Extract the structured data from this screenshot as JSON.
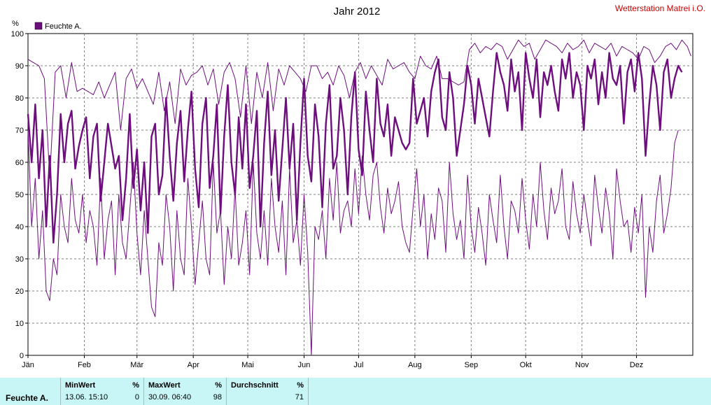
{
  "header": {
    "station": "Wetterstation Matrei i.O."
  },
  "chart_data": {
    "type": "line",
    "title": "Jahr 2012",
    "ylabel": "%",
    "ylim": [
      0,
      100
    ],
    "yticks": [
      0,
      10,
      20,
      30,
      40,
      50,
      60,
      70,
      80,
      90,
      100
    ],
    "months": [
      "Jän",
      "Feb",
      "Mär",
      "Apr",
      "Mai",
      "Jun",
      "Jul",
      "Aug",
      "Sep",
      "Okt",
      "Nov",
      "Dez"
    ],
    "month_start_day": [
      1,
      32,
      61,
      92,
      122,
      153,
      183,
      214,
      245,
      275,
      306,
      336
    ],
    "xlim_day": [
      1,
      367
    ],
    "grid": true,
    "legend": {
      "position": "top-left",
      "entries": [
        "Feuchte A."
      ]
    },
    "colors": {
      "series": "#6e0e7e",
      "title_station": "#cc0000"
    },
    "series": [
      {
        "name": "Feuchte A.",
        "role": "max",
        "day": [
          1,
          4,
          7,
          10,
          13,
          16,
          19,
          22,
          25,
          28,
          31,
          34,
          37,
          40,
          43,
          46,
          49,
          52,
          55,
          58,
          61,
          64,
          67,
          70,
          73,
          76,
          79,
          82,
          85,
          88,
          91,
          94,
          97,
          100,
          103,
          106,
          109,
          112,
          115,
          118,
          121,
          124,
          127,
          130,
          133,
          136,
          139,
          142,
          145,
          148,
          151,
          154,
          157,
          160,
          163,
          166,
          169,
          172,
          175,
          178,
          181,
          184,
          187,
          190,
          193,
          196,
          199,
          202,
          205,
          208,
          211,
          214,
          217,
          220,
          223,
          226,
          229,
          232,
          235,
          238,
          241,
          244,
          247,
          250,
          253,
          256,
          259,
          262,
          265,
          268,
          271,
          274,
          277,
          280,
          283,
          286,
          289,
          292,
          295,
          298,
          301,
          304,
          307,
          310,
          313,
          316,
          319,
          322,
          325,
          328,
          331,
          334,
          337,
          340,
          343,
          346,
          349,
          352,
          355,
          358,
          361,
          364,
          366
        ],
        "value": [
          92,
          91,
          90,
          86,
          55,
          88,
          90,
          80,
          91,
          82,
          83,
          82,
          81,
          85,
          80,
          84,
          88,
          70,
          86,
          89,
          83,
          86,
          82,
          78,
          88,
          76,
          85,
          72,
          89,
          84,
          87,
          88,
          90,
          84,
          89,
          78,
          88,
          91,
          86,
          74,
          90,
          72,
          88,
          80,
          91,
          76,
          89,
          84,
          90,
          88,
          86,
          82,
          90,
          90,
          86,
          88,
          84,
          90,
          87,
          80,
          88,
          91,
          86,
          90,
          87,
          84,
          92,
          89,
          90,
          91,
          88,
          86,
          93,
          90,
          89,
          93,
          86,
          86,
          85,
          84,
          85,
          95,
          97,
          94,
          96,
          95,
          97,
          96,
          92,
          95,
          98,
          96,
          97,
          92,
          95,
          98,
          97,
          96,
          94,
          97,
          95,
          96,
          98,
          94,
          97,
          96,
          95,
          97,
          93,
          96,
          95,
          94,
          92,
          96,
          95,
          91,
          93,
          96,
          97,
          95,
          98,
          96,
          93
        ]
      },
      {
        "name": "Feuchte A.",
        "role": "mean",
        "day": [
          1,
          3,
          5,
          7,
          9,
          11,
          13,
          15,
          17,
          19,
          21,
          23,
          25,
          27,
          29,
          31,
          33,
          35,
          37,
          39,
          41,
          43,
          45,
          47,
          49,
          51,
          53,
          55,
          57,
          59,
          61,
          63,
          65,
          67,
          69,
          71,
          73,
          75,
          77,
          79,
          81,
          83,
          85,
          87,
          89,
          91,
          93,
          95,
          97,
          99,
          101,
          103,
          105,
          107,
          109,
          111,
          113,
          115,
          117,
          119,
          121,
          123,
          125,
          127,
          129,
          131,
          133,
          135,
          137,
          139,
          141,
          143,
          145,
          147,
          149,
          151,
          153,
          155,
          157,
          159,
          161,
          163,
          165,
          167,
          169,
          171,
          173,
          175,
          177,
          179,
          181,
          183,
          185,
          187,
          189,
          191,
          193,
          195,
          197,
          199,
          201,
          203,
          205,
          207,
          209,
          211,
          213,
          215,
          217,
          219,
          221,
          223,
          225,
          227,
          229,
          231,
          233,
          235,
          237,
          239,
          241,
          243,
          245,
          247,
          249,
          251,
          253,
          255,
          257,
          259,
          261,
          263,
          265,
          267,
          269,
          271,
          273,
          275,
          277,
          279,
          281,
          283,
          285,
          287,
          289,
          291,
          293,
          295,
          297,
          299,
          301,
          303,
          305,
          307,
          309,
          311,
          313,
          315,
          317,
          319,
          321,
          323,
          325,
          327,
          329,
          331,
          333,
          335,
          337,
          339,
          341,
          343,
          345,
          347,
          349,
          351,
          353,
          355,
          357,
          359,
          361,
          363,
          365,
          366
        ],
        "value": [
          75,
          60,
          78,
          55,
          70,
          40,
          62,
          35,
          50,
          75,
          60,
          72,
          76,
          58,
          65,
          70,
          74,
          55,
          68,
          72,
          48,
          60,
          72,
          65,
          58,
          62,
          42,
          55,
          75,
          52,
          64,
          45,
          60,
          38,
          68,
          72,
          50,
          56,
          80,
          62,
          48,
          66,
          76,
          54,
          70,
          82,
          58,
          46,
          72,
          80,
          52,
          62,
          78,
          44,
          68,
          84,
          60,
          50,
          74,
          58,
          78,
          52,
          62,
          76,
          40,
          66,
          82,
          56,
          70,
          48,
          64,
          80,
          58,
          72,
          42,
          66,
          86,
          62,
          54,
          78,
          68,
          46,
          72,
          84,
          58,
          62,
          80,
          70,
          50,
          74,
          88,
          64,
          56,
          82,
          70,
          60,
          86,
          72,
          68,
          78,
          62,
          74,
          70,
          66,
          64,
          66,
          86,
          72,
          76,
          80,
          68,
          82,
          88,
          92,
          74,
          70,
          88,
          80,
          62,
          70,
          78,
          90,
          84,
          72,
          86,
          80,
          74,
          68,
          82,
          94,
          88,
          84,
          76,
          92,
          82,
          88,
          70,
          94,
          86,
          80,
          92,
          74,
          88,
          84,
          90,
          82,
          76,
          92,
          86,
          94,
          80,
          88,
          84,
          70,
          90,
          86,
          92,
          78,
          88,
          80,
          94,
          86,
          84,
          90,
          72,
          88,
          92,
          82,
          94,
          86,
          62,
          78,
          90,
          84,
          70,
          88,
          92,
          80,
          86,
          90,
          88
        ]
      },
      {
        "name": "Feuchte A.",
        "role": "min",
        "day": [
          1,
          3,
          5,
          7,
          9,
          11,
          13,
          15,
          17,
          19,
          21,
          23,
          25,
          27,
          29,
          31,
          33,
          35,
          37,
          39,
          41,
          43,
          45,
          47,
          49,
          51,
          53,
          55,
          57,
          59,
          61,
          63,
          65,
          67,
          69,
          71,
          73,
          75,
          77,
          79,
          81,
          83,
          85,
          87,
          89,
          91,
          93,
          95,
          97,
          99,
          101,
          103,
          105,
          107,
          109,
          111,
          113,
          115,
          117,
          119,
          121,
          123,
          125,
          127,
          129,
          131,
          133,
          135,
          137,
          139,
          141,
          143,
          145,
          147,
          149,
          151,
          153,
          155,
          157,
          159,
          161,
          163,
          165,
          167,
          169,
          171,
          173,
          175,
          177,
          179,
          181,
          183,
          185,
          187,
          189,
          191,
          193,
          195,
          197,
          199,
          201,
          203,
          205,
          207,
          209,
          211,
          213,
          215,
          217,
          219,
          221,
          223,
          225,
          227,
          229,
          231,
          233,
          235,
          237,
          239,
          241,
          243,
          245,
          247,
          249,
          251,
          253,
          255,
          257,
          259,
          261,
          263,
          265,
          267,
          269,
          271,
          273,
          275,
          277,
          279,
          281,
          283,
          285,
          287,
          289,
          291,
          293,
          295,
          297,
          299,
          301,
          303,
          305,
          307,
          309,
          311,
          313,
          315,
          317,
          319,
          321,
          323,
          325,
          327,
          329,
          331,
          333,
          335,
          337,
          339,
          341,
          343,
          345,
          347,
          349,
          351,
          353,
          355,
          357,
          359,
          361,
          363,
          365,
          366
        ],
        "value": [
          70,
          40,
          55,
          30,
          45,
          20,
          17,
          30,
          25,
          50,
          40,
          35,
          55,
          42,
          38,
          50,
          35,
          45,
          40,
          28,
          55,
          30,
          42,
          48,
          25,
          50,
          35,
          30,
          45,
          60,
          38,
          25,
          45,
          30,
          15,
          12,
          35,
          28,
          50,
          40,
          20,
          45,
          30,
          25,
          55,
          40,
          22,
          35,
          48,
          30,
          25,
          60,
          38,
          45,
          22,
          40,
          30,
          52,
          28,
          35,
          45,
          25,
          60,
          38,
          30,
          45,
          28,
          55,
          40,
          32,
          48,
          25,
          58,
          35,
          42,
          28,
          50,
          32,
          0,
          40,
          36,
          45,
          30,
          55,
          42,
          60,
          38,
          45,
          48,
          40,
          58,
          44,
          62,
          50,
          42,
          56,
          60,
          46,
          38,
          52,
          44,
          48,
          54,
          40,
          35,
          32,
          46,
          58,
          40,
          50,
          30,
          44,
          36,
          52,
          48,
          32,
          60,
          44,
          36,
          42,
          30,
          56,
          40,
          32,
          46,
          38,
          28,
          50,
          42,
          35,
          56,
          40,
          30,
          48,
          45,
          38,
          55,
          42,
          33,
          50,
          40,
          60,
          45,
          36,
          52,
          44,
          48,
          58,
          40,
          36,
          54,
          44,
          38,
          50,
          42,
          34,
          56,
          46,
          38,
          52,
          44,
          30,
          58,
          48,
          40,
          42,
          32,
          46,
          38,
          50,
          18,
          40,
          32,
          48,
          56,
          38,
          44,
          52,
          66,
          70
        ]
      }
    ]
  },
  "stats": {
    "series_label": "Feuchte A.",
    "min": {
      "header": "MinWert",
      "unit": "%",
      "time": "13.06.  15:10",
      "value": "0"
    },
    "max": {
      "header": "MaxWert",
      "unit": "%",
      "time": "30.09.  06:40",
      "value": "98"
    },
    "avg": {
      "header": "Durchschnitt",
      "unit": "%",
      "value": "71"
    }
  }
}
